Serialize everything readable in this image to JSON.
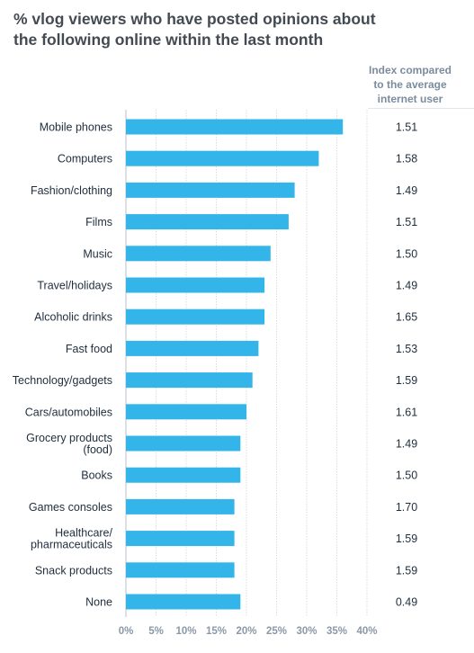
{
  "title": "% vlog viewers who have posted opinions about the following online within the last month",
  "index_header": "Index compared to the average internet user",
  "colors": {
    "bar": "#33b5ea",
    "grid": "#d8dde3",
    "tick": "#8a98a8",
    "title": "#444a52"
  },
  "chart_data": {
    "type": "bar",
    "orientation": "horizontal",
    "title": "% vlog viewers who have posted opinions about the following online within the last month",
    "categories": [
      "Mobile phones",
      "Computers",
      "Fashion/clothing",
      "Films",
      "Music",
      "Travel/holidays",
      "Alcoholic drinks",
      "Fast food",
      "Technology/gadgets",
      "Cars/automobiles",
      "Grocery products (food)",
      "Books",
      "Games consoles",
      "Healthcare/ pharmaceuticals",
      "Snack products",
      "None"
    ],
    "category_lines": [
      [
        "Mobile phones"
      ],
      [
        "Computers"
      ],
      [
        "Fashion/clothing"
      ],
      [
        "Films"
      ],
      [
        "Music"
      ],
      [
        "Travel/holidays"
      ],
      [
        "Alcoholic drinks"
      ],
      [
        "Fast food"
      ],
      [
        "Technology/gadgets"
      ],
      [
        "Cars/automobiles"
      ],
      [
        "Grocery products",
        "(food)"
      ],
      [
        "Books"
      ],
      [
        "Games consoles"
      ],
      [
        "Healthcare/",
        "pharmaceuticals"
      ],
      [
        "Snack products"
      ],
      [
        "None"
      ]
    ],
    "values": [
      36,
      32,
      28,
      27,
      24,
      23,
      23,
      22,
      21,
      20,
      19,
      19,
      18,
      18,
      18,
      19
    ],
    "index_values": [
      "1.51",
      "1.58",
      "1.49",
      "1.51",
      "1.50",
      "1.49",
      "1.65",
      "1.53",
      "1.59",
      "1.61",
      "1.49",
      "1.50",
      "1.70",
      "1.59",
      "1.59",
      "0.49"
    ],
    "x_ticks": [
      "0%",
      "5%",
      "10%",
      "15%",
      "20%",
      "25%",
      "30%",
      "35%",
      "40%"
    ],
    "xlim": [
      0,
      40
    ],
    "grid": true
  }
}
